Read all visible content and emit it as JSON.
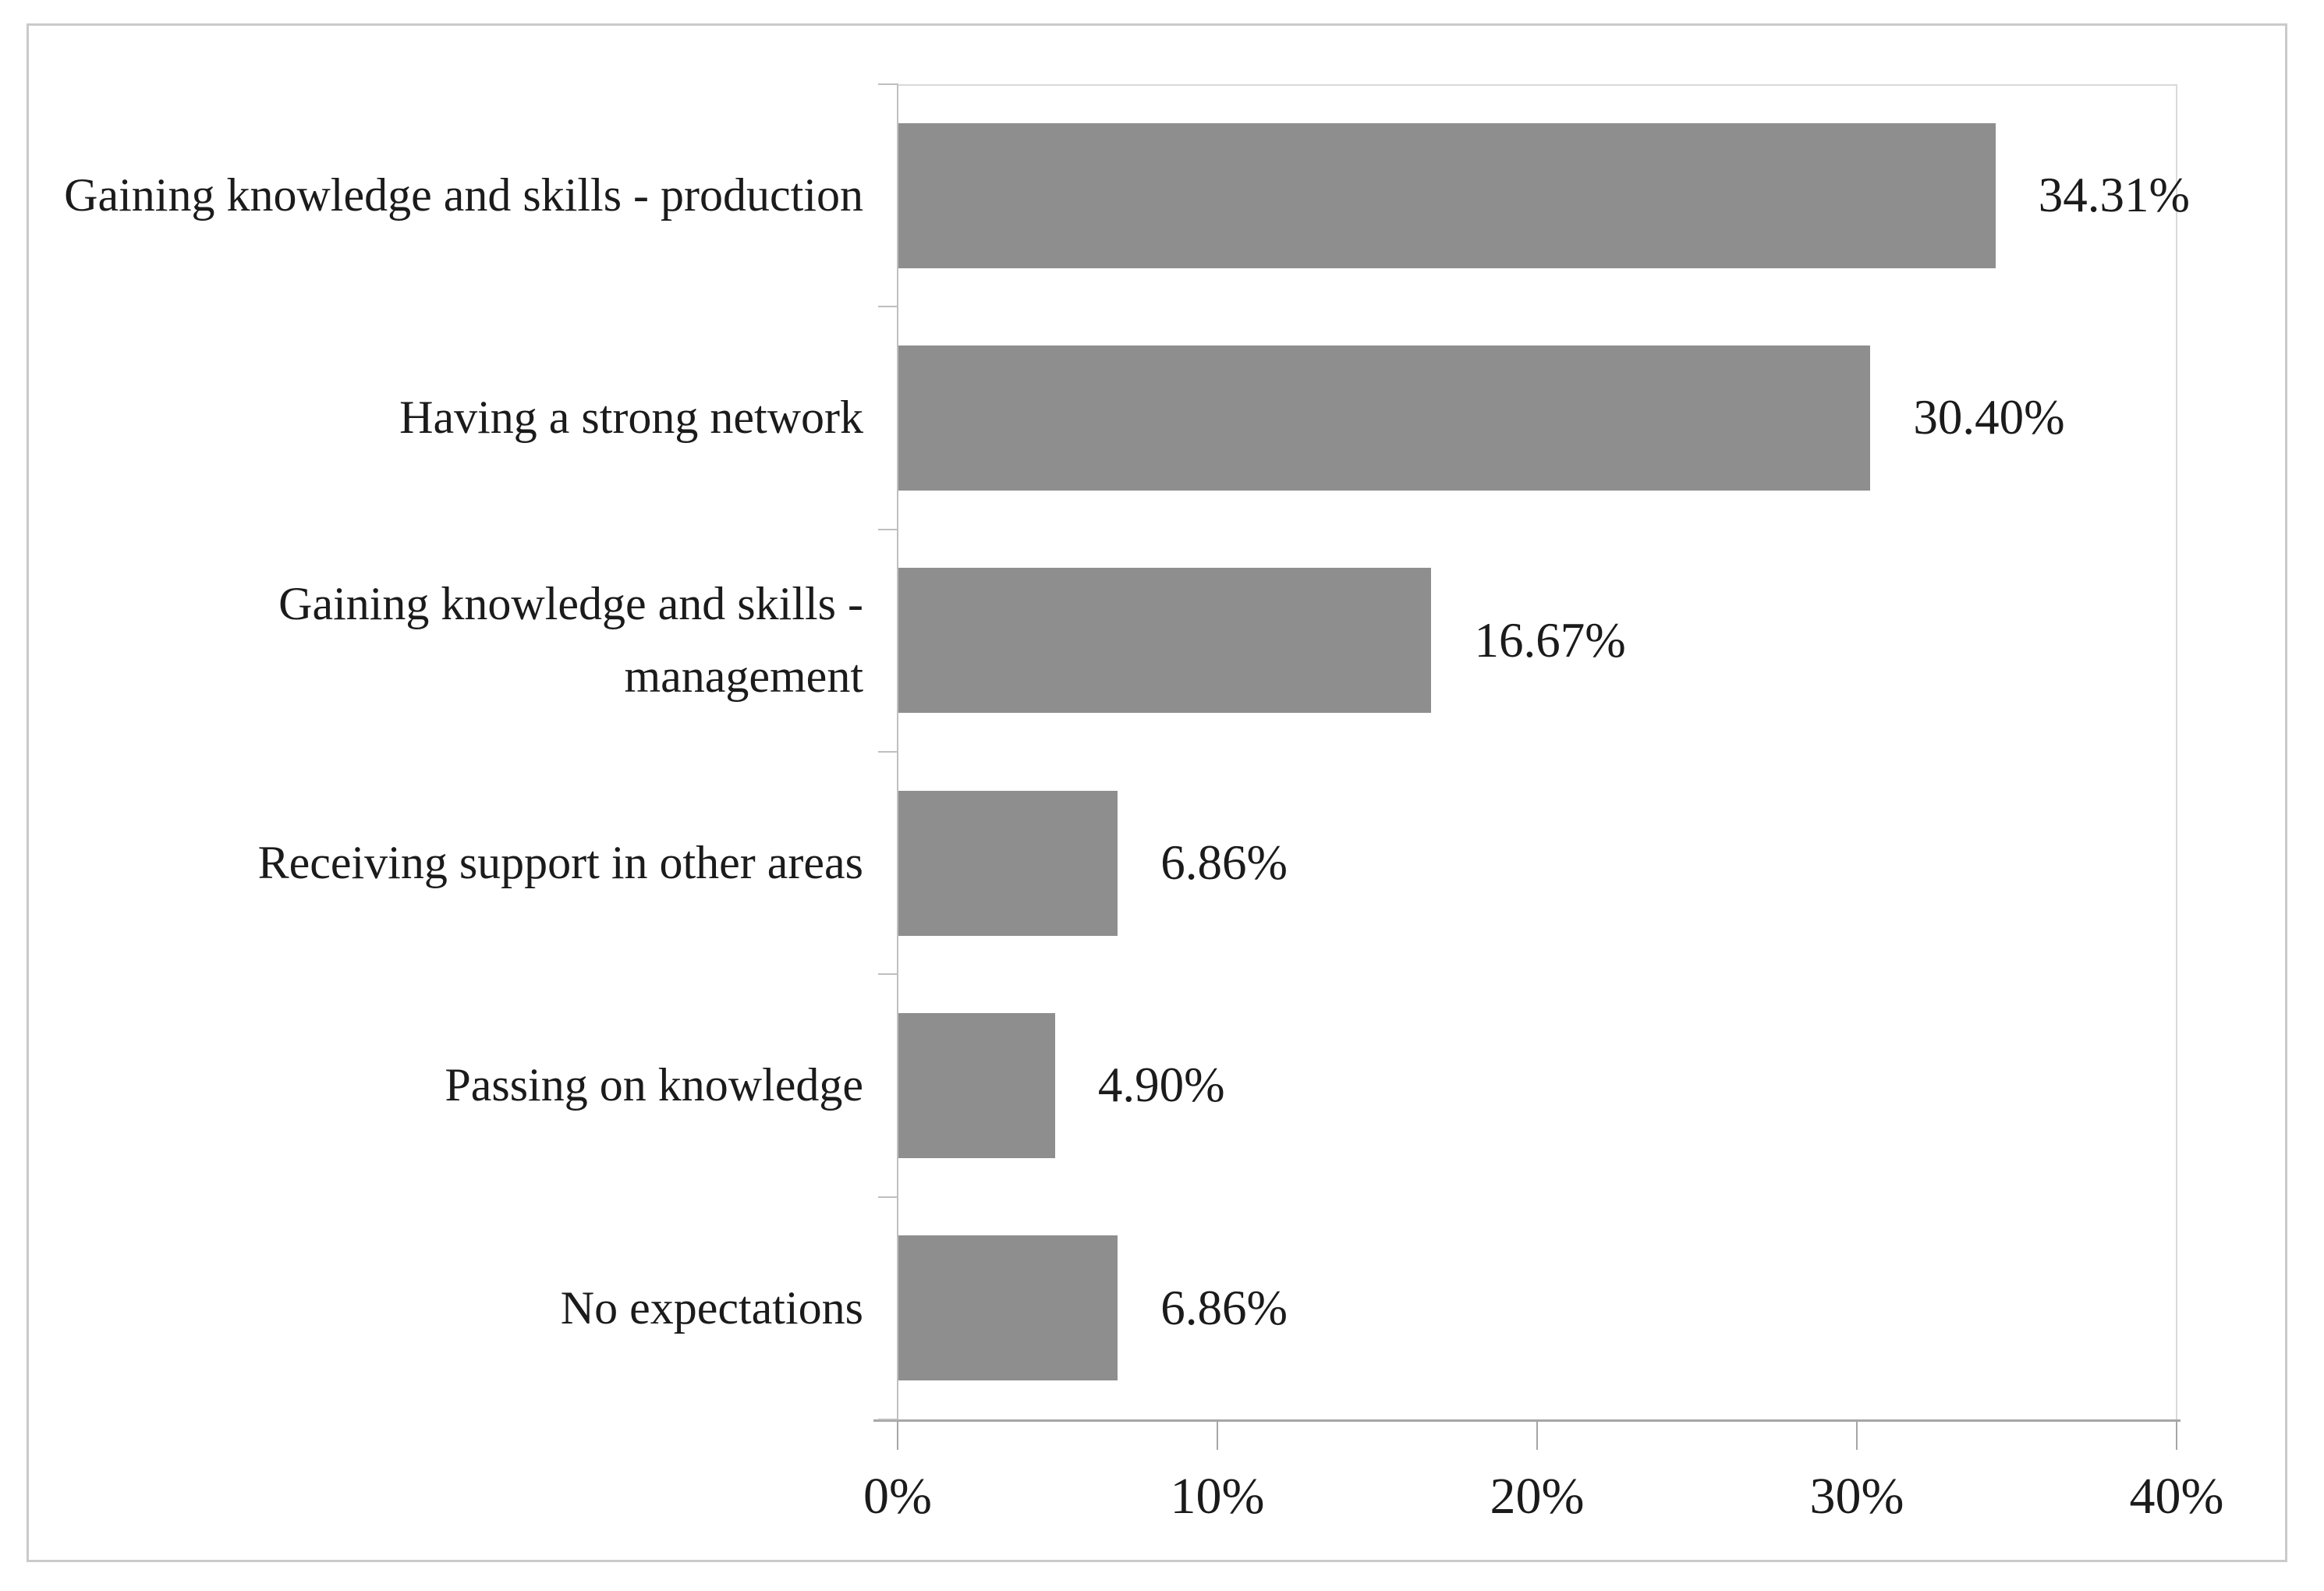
{
  "chart_data": {
    "type": "bar",
    "orientation": "horizontal",
    "title": "",
    "xlabel": "",
    "ylabel": "",
    "categories": [
      "Gaining knowledge and skills - production",
      "Having a strong network",
      "Gaining knowledge and skills - management",
      "Receiving support in other areas",
      "Passing on knowledge",
      "No expectations"
    ],
    "values": [
      34.31,
      30.4,
      16.67,
      6.86,
      4.9,
      6.86
    ],
    "value_labels": [
      "34.31%",
      "30.40%",
      "16.67%",
      "6.86%",
      "4.90%",
      "6.86%"
    ],
    "x_tick_values": [
      0,
      10,
      20,
      30,
      40
    ],
    "x_tick_labels": [
      "0%",
      "10%",
      "20%",
      "30%",
      "40%"
    ],
    "xlim": [
      0,
      40
    ],
    "grid": false,
    "legend": false,
    "bar_color": "#8e8e8e",
    "axis_color": "#a6a6a6",
    "minor_line_color": "#bfbfbf",
    "border_color": "#d9d9d9",
    "text_color": "#1b1b1b"
  }
}
